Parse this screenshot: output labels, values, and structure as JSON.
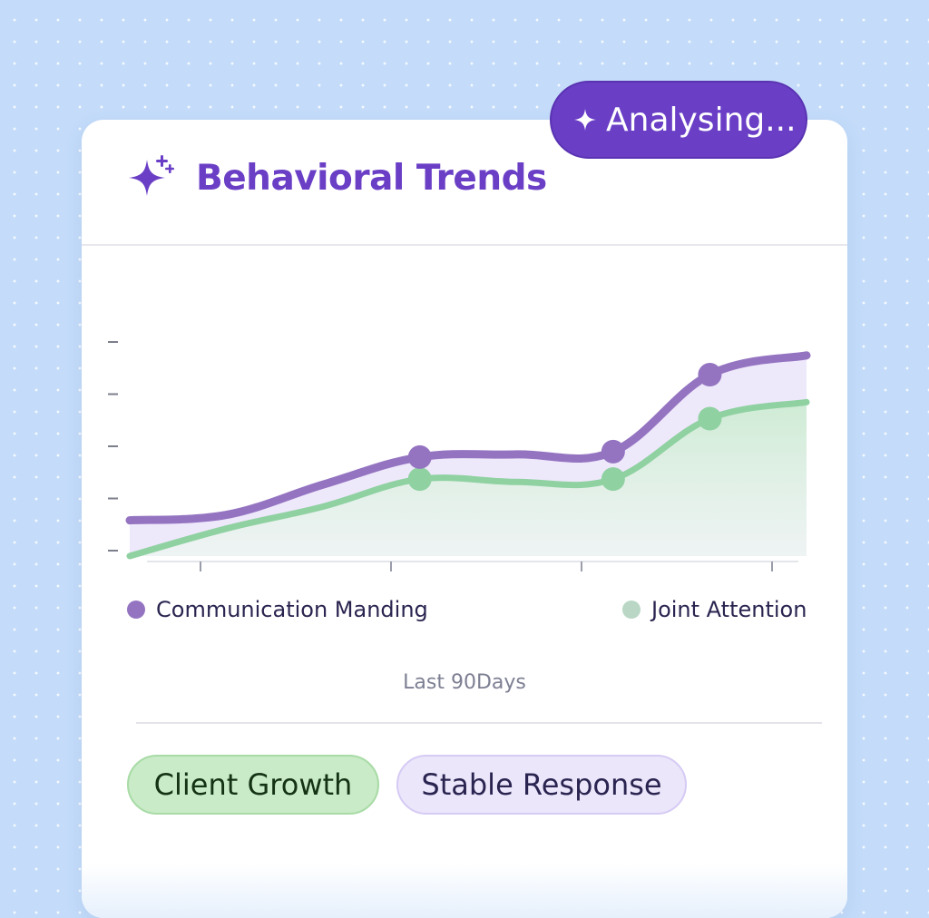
{
  "header": {
    "title": "Behavioral Trends",
    "icon": "sparkles-icon",
    "accent_color": "#6a3fc6"
  },
  "status": {
    "label": "Analysing...",
    "icon": "sparkle-icon",
    "color": "#6a3fc6"
  },
  "chart_data": {
    "type": "area",
    "title": "",
    "xlabel": "",
    "ylabel": "",
    "x": [
      0,
      1,
      2,
      3,
      4,
      5,
      6,
      7
    ],
    "ylim": [
      0,
      10
    ],
    "grid": false,
    "y_tick_count": 5,
    "x_tick_count": 4,
    "legend_position": "bottom",
    "series": [
      {
        "name": "Communication Manding",
        "color": "#9474c1",
        "fill": "#ece6fb",
        "values": [
          1.3,
          1.5,
          2.6,
          3.6,
          3.7,
          3.8,
          6.6,
          7.3
        ],
        "marked_points": [
          3,
          5,
          6
        ]
      },
      {
        "name": "Joint Attention",
        "color": "#8fd1a1",
        "fill": "#d4efd9",
        "values": [
          0.0,
          1.0,
          1.8,
          2.8,
          2.7,
          2.8,
          5.0,
          5.6
        ],
        "marked_points": [
          3,
          5,
          6
        ]
      }
    ]
  },
  "legend": {
    "items": [
      {
        "label": "Communication Manding",
        "color": "#9474c1"
      },
      {
        "label": "Joint Attention",
        "color": "#b9d7c4"
      }
    ]
  },
  "footer": {
    "period_label": "Last 90Days",
    "tags": [
      {
        "label": "Client Growth",
        "color": "#c9ebc7"
      },
      {
        "label": "Stable Response",
        "color": "#ece6fb"
      }
    ]
  }
}
